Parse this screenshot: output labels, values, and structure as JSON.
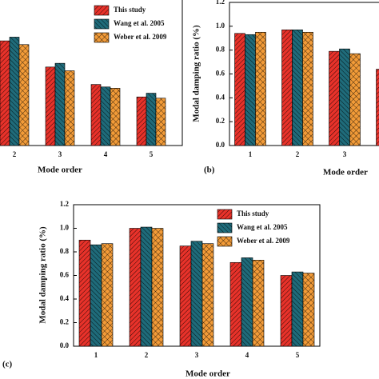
{
  "chart_data": [
    {
      "type": "bar",
      "x_label": "Mode order",
      "categories": [
        "2",
        "3",
        "4",
        "5"
      ],
      "series": [
        {
          "name": "This study",
          "color": "#e8322a",
          "values": [
            0.84,
            0.63,
            0.49,
            0.39
          ]
        },
        {
          "name": "Wang et al. 2005",
          "color": "#1f6b7a",
          "values": [
            0.87,
            0.66,
            0.47,
            0.42
          ]
        },
        {
          "name": "Weber et al. 2009",
          "color": "#f29b38",
          "values": [
            0.81,
            0.6,
            0.46,
            0.38
          ]
        }
      ],
      "ylim": [
        0,
        1.2
      ]
    },
    {
      "type": "bar",
      "panel": "(b)",
      "x_label": "Mode order",
      "y_label": "Modal damping ratio (%)",
      "categories": [
        "1",
        "2",
        "3",
        null
      ],
      "series": [
        {
          "color": "#e8322a",
          "values": [
            0.94,
            0.97,
            0.79,
            0.64
          ]
        },
        {
          "color": "#1f6b7a",
          "values": [
            0.93,
            0.97,
            0.81,
            null
          ]
        },
        {
          "color": "#f29b38",
          "values": [
            0.95,
            0.95,
            0.77,
            null
          ]
        }
      ],
      "ylim": [
        0,
        1.2
      ],
      "yticks": [
        {
          "value": 0,
          "label": "0.0"
        },
        0.2,
        0.4,
        0.6,
        0.8,
        {
          "value": 1,
          "label": "1.0"
        },
        1.2
      ]
    },
    {
      "type": "bar",
      "panel": "(c)",
      "x_label": "Mode order",
      "y_label": "Modal damping ratio (%)",
      "categories": [
        "1",
        "2",
        "3",
        "4",
        "5"
      ],
      "series": [
        {
          "name": "This study",
          "color": "#e8322a",
          "values": [
            0.9,
            1.0,
            0.85,
            0.71,
            0.6
          ]
        },
        {
          "name": "Wang et al. 2005",
          "color": "#1f6b7a",
          "values": [
            0.86,
            1.01,
            0.89,
            0.75,
            0.63
          ]
        },
        {
          "name": "Weber et al. 2009",
          "color": "#f29b38",
          "values": [
            0.87,
            1.0,
            0.87,
            0.73,
            0.62
          ]
        }
      ],
      "ylim": [
        0,
        1.2
      ],
      "yticks": [
        {
          "value": 0,
          "label": "0.0"
        },
        0.2,
        0.4,
        0.6,
        0.8,
        {
          "value": 1,
          "label": "1.0"
        },
        1.2
      ]
    }
  ]
}
